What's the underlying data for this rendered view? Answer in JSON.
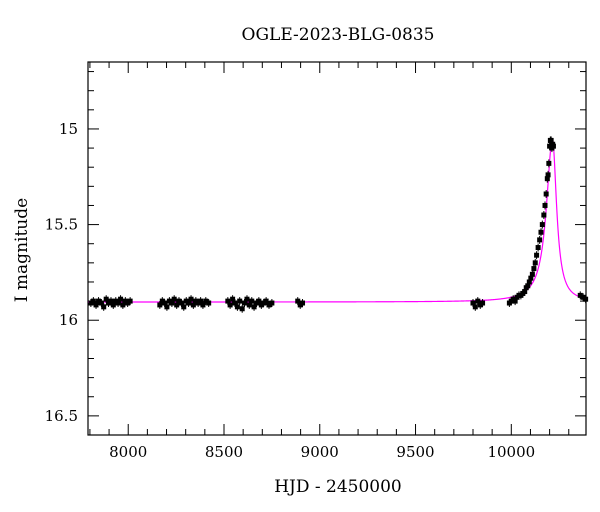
{
  "chart_data": {
    "type": "scatter",
    "title": "OGLE-2023-BLG-0835",
    "xlabel": "HJD - 2450000",
    "ylabel": "I magnitude",
    "xlim": [
      7790,
      10390
    ],
    "ylim": [
      16.6,
      14.65
    ],
    "y_inverted": true,
    "grid": false,
    "x_ticks": [
      {
        "value": 8000,
        "label": "8000"
      },
      {
        "value": 8500,
        "label": "8500"
      },
      {
        "value": 9000,
        "label": "9000"
      },
      {
        "value": 9500,
        "label": "9500"
      },
      {
        "value": 10000,
        "label": "10000"
      }
    ],
    "y_ticks": [
      {
        "value": 15,
        "label": "15"
      },
      {
        "value": 15.5,
        "label": "15.5"
      },
      {
        "value": 16,
        "label": "16"
      },
      {
        "value": 16.5,
        "label": "16.5"
      }
    ],
    "series": [
      {
        "type": "scatter",
        "color": "#000000",
        "x": [
          7805,
          7818,
          7832,
          7845,
          7860,
          7872,
          7885,
          7897,
          7910,
          7922,
          7935,
          7947,
          7960,
          7972,
          7985,
          7997,
          8010,
          8165,
          8178,
          8190,
          8202,
          8215,
          8228,
          8240,
          8253,
          8265,
          8278,
          8290,
          8303,
          8315,
          8328,
          8340,
          8353,
          8365,
          8378,
          8390,
          8405,
          8420,
          8520,
          8532,
          8545,
          8557,
          8570,
          8582,
          8595,
          8607,
          8620,
          8632,
          8645,
          8657,
          8670,
          8682,
          8695,
          8707,
          8720,
          8735,
          8750,
          8885,
          8898,
          8910,
          9800,
          9812,
          9825,
          9838,
          9850,
          9990,
          10000,
          10010,
          10020,
          10030,
          10040,
          10050,
          10060,
          10070,
          10078,
          10086,
          10094,
          10102,
          10110,
          10118,
          10125,
          10132,
          10140,
          10148,
          10155,
          10162,
          10170,
          10176,
          10182,
          10188,
          10192,
          10196,
          10200,
          10204,
          10208,
          10212,
          10216,
          10220,
          10360,
          10375,
          10388
        ],
        "y": [
          15.91,
          15.9,
          15.92,
          15.9,
          15.91,
          15.93,
          15.89,
          15.91,
          15.9,
          15.92,
          15.9,
          15.91,
          15.89,
          15.92,
          15.9,
          15.91,
          15.9,
          15.92,
          15.9,
          15.91,
          15.93,
          15.9,
          15.91,
          15.89,
          15.92,
          15.9,
          15.91,
          15.93,
          15.9,
          15.91,
          15.89,
          15.92,
          15.9,
          15.91,
          15.9,
          15.92,
          15.9,
          15.91,
          15.9,
          15.92,
          15.89,
          15.91,
          15.93,
          15.9,
          15.94,
          15.91,
          15.89,
          15.92,
          15.9,
          15.93,
          15.91,
          15.9,
          15.92,
          15.91,
          15.9,
          15.92,
          15.91,
          15.9,
          15.92,
          15.91,
          15.91,
          15.93,
          15.9,
          15.92,
          15.91,
          15.91,
          15.9,
          15.89,
          15.9,
          15.88,
          15.87,
          15.87,
          15.86,
          15.85,
          15.83,
          15.82,
          15.8,
          15.78,
          15.76,
          15.73,
          15.7,
          15.66,
          15.62,
          15.58,
          15.54,
          15.5,
          15.45,
          15.4,
          15.34,
          15.26,
          15.24,
          15.18,
          15.09,
          15.06,
          15.06,
          15.1,
          15.08,
          15.09,
          15.87,
          15.88,
          15.89
        ]
      }
    ],
    "model_curve": {
      "color": "#ff00ff",
      "baseline": 15.905,
      "peak_x": 10215,
      "peak_mag": 15.055
    }
  }
}
